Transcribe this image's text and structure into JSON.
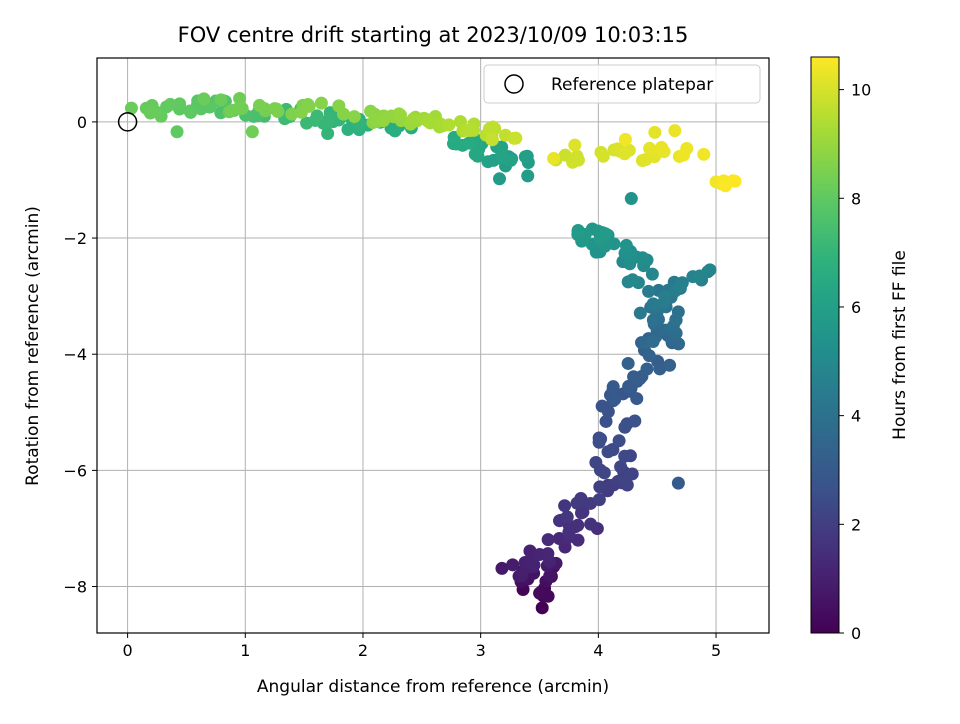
{
  "chart_data": {
    "type": "scatter",
    "title": "FOV centre drift starting at 2023/10/09 10:03:15",
    "xlabel": "Angular distance from reference (arcmin)",
    "ylabel": "Rotation from reference (arcmin)",
    "xlim": [
      -0.26,
      5.45
    ],
    "ylim": [
      -8.8,
      1.1
    ],
    "xticks": [
      0,
      1,
      2,
      3,
      4,
      5
    ],
    "yticks": [
      0,
      -2,
      -4,
      -6,
      -8
    ],
    "grid": true,
    "colormap": "viridis",
    "colorbar": {
      "label": "Hours from first FF file",
      "range": [
        0,
        10.6
      ],
      "ticks": [
        0,
        2,
        4,
        6,
        8,
        10
      ]
    },
    "legend": {
      "position": "top-right",
      "entries": [
        {
          "label": "Reference platepar",
          "marker": "open-circle",
          "x": 0,
          "y": 0
        }
      ]
    },
    "segments": [
      {
        "from": [
          3.47,
          -8.3
        ],
        "to": [
          3.48,
          -7.55
        ],
        "t": [
          0.0,
          0.8
        ],
        "n": 20,
        "spread": 0.17
      },
      {
        "from": [
          3.2,
          -7.8
        ],
        "to": [
          3.9,
          -7.0
        ],
        "t": [
          0.8,
          1.5
        ],
        "n": 24,
        "spread": 0.15
      },
      {
        "from": [
          3.7,
          -7.05
        ],
        "to": [
          4.25,
          -6.0
        ],
        "t": [
          1.5,
          2.2
        ],
        "n": 26,
        "spread": 0.17
      },
      {
        "from": [
          4.1,
          -6.0
        ],
        "to": [
          4.2,
          -4.6
        ],
        "t": [
          2.2,
          2.9
        ],
        "n": 24,
        "spread": 0.17
      },
      {
        "from": [
          4.2,
          -4.7
        ],
        "to": [
          4.6,
          -3.6
        ],
        "t": [
          2.9,
          3.6
        ],
        "n": 24,
        "spread": 0.17
      },
      {
        "from": [
          4.55,
          -3.9
        ],
        "to": [
          4.6,
          -2.8
        ],
        "t": [
          3.6,
          4.3
        ],
        "n": 24,
        "spread": 0.16
      },
      {
        "from": [
          4.4,
          -3.2
        ],
        "to": [
          4.9,
          -2.6
        ],
        "t": [
          4.3,
          4.8
        ],
        "n": 12,
        "spread": 0.12
      },
      {
        "from": [
          4.4,
          -2.7
        ],
        "to": [
          4.1,
          -2.1
        ],
        "t": [
          4.8,
          5.4
        ],
        "n": 16,
        "spread": 0.14
      },
      {
        "from": [
          4.0,
          -2.1
        ],
        "to": [
          3.95,
          -1.8
        ],
        "t": [
          5.4,
          5.8
        ],
        "n": 16,
        "spread": 0.16
      },
      {
        "from": [
          3.4,
          -0.7
        ],
        "to": [
          2.8,
          -0.35
        ],
        "t": [
          5.8,
          6.6
        ],
        "n": 30,
        "spread": 0.13
      },
      {
        "from": [
          2.3,
          -0.1
        ],
        "to": [
          1.5,
          0.1
        ],
        "t": [
          6.6,
          7.2
        ],
        "n": 24,
        "spread": 0.12
      },
      {
        "from": [
          1.4,
          0.15
        ],
        "to": [
          0.6,
          0.3
        ],
        "t": [
          7.2,
          7.9
        ],
        "n": 20,
        "spread": 0.12
      },
      {
        "from": [
          0.6,
          0.3
        ],
        "to": [
          0.1,
          0.15
        ],
        "t": [
          7.9,
          8.2
        ],
        "n": 14,
        "spread": 0.12
      },
      {
        "from": [
          0.7,
          0.3
        ],
        "to": [
          1.7,
          0.2
        ],
        "t": [
          8.2,
          8.7
        ],
        "n": 20,
        "spread": 0.12
      },
      {
        "from": [
          1.9,
          0.1
        ],
        "to": [
          2.6,
          0.0
        ],
        "t": [
          8.7,
          9.2
        ],
        "n": 22,
        "spread": 0.1
      },
      {
        "from": [
          2.6,
          0.0
        ],
        "to": [
          3.25,
          -0.25
        ],
        "t": [
          9.2,
          9.8
        ],
        "n": 22,
        "spread": 0.11
      },
      {
        "from": [
          3.6,
          -0.6
        ],
        "to": [
          4.9,
          -0.5
        ],
        "t": [
          9.8,
          10.4
        ],
        "n": 22,
        "spread": 0.12
      },
      {
        "from": [
          5.0,
          -1.05
        ],
        "to": [
          5.18,
          -1.0
        ],
        "t": [
          10.4,
          10.6
        ],
        "n": 5,
        "spread": 0.05
      }
    ],
    "outliers": [
      {
        "x": 0.42,
        "y": -0.17,
        "t": 8.0
      },
      {
        "x": 1.06,
        "y": -0.17,
        "t": 8.3
      },
      {
        "x": 1.7,
        "y": -0.2,
        "t": 7.0
      },
      {
        "x": 3.4,
        "y": -0.93,
        "t": 5.9
      },
      {
        "x": 3.16,
        "y": -0.98,
        "t": 5.8
      },
      {
        "x": 3.62,
        "y": -0.63,
        "t": 10.3
      },
      {
        "x": 3.8,
        "y": -0.4,
        "t": 10.1
      },
      {
        "x": 4.68,
        "y": -6.22,
        "t": 3.0
      },
      {
        "x": 4.93,
        "y": -2.58,
        "t": 4.7
      },
      {
        "x": 4.28,
        "y": -1.32,
        "t": 5.4
      },
      {
        "x": 4.65,
        "y": -0.15,
        "t": 10.3
      },
      {
        "x": 4.48,
        "y": -0.18,
        "t": 10.2
      },
      {
        "x": 4.23,
        "y": -0.3,
        "t": 10.4
      },
      {
        "x": 5.08,
        "y": -1.1,
        "t": 10.55
      }
    ]
  }
}
